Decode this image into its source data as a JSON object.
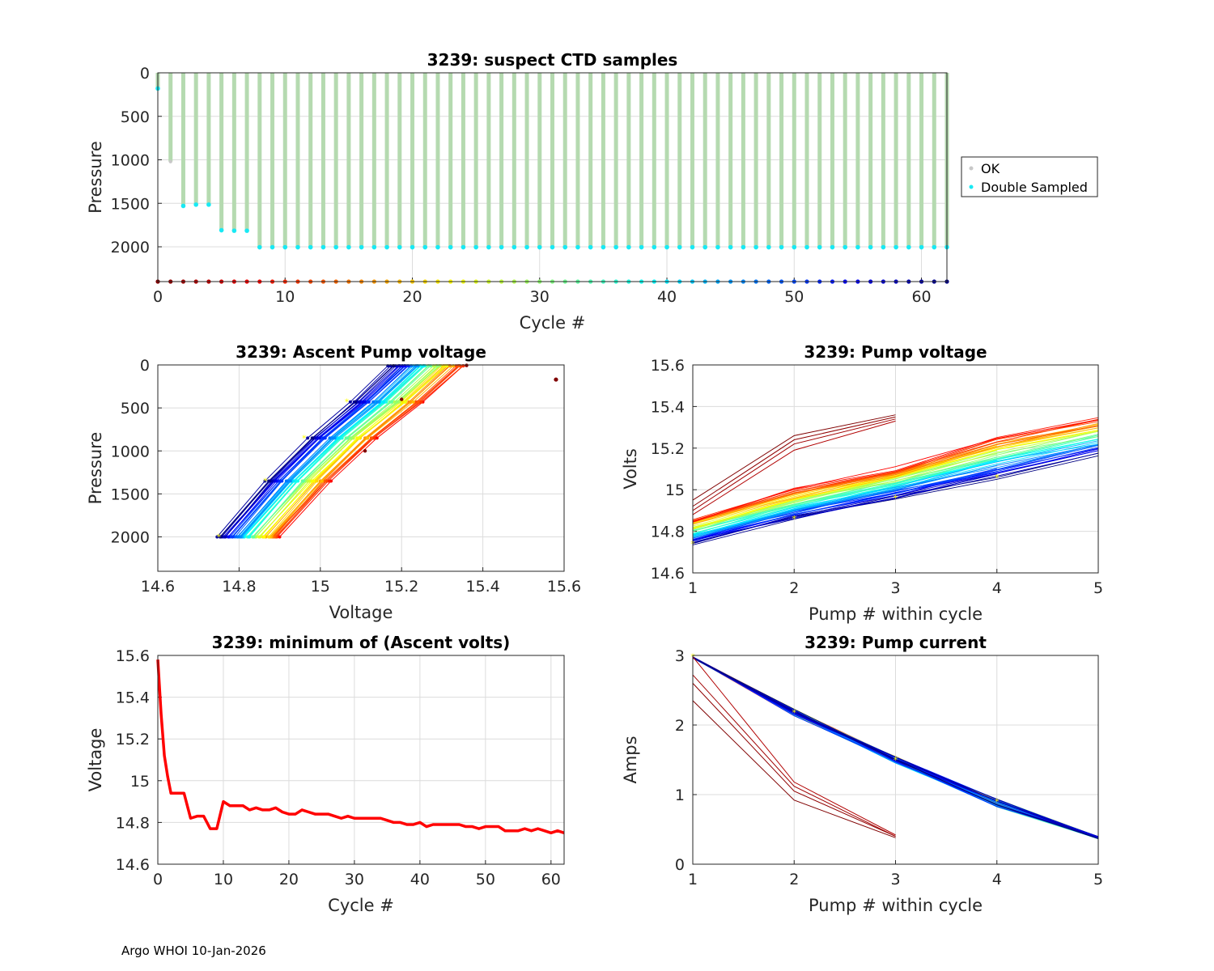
{
  "footer": "Argo WHOI 10-Jan-2026",
  "colors": {
    "grid": "#dcdcdc",
    "ok_bar": "#b5dab0",
    "double_sampled": "#19e9f4",
    "min_line": "#ff0000",
    "marker_yellow": "#ffff00"
  },
  "chart_data": [
    {
      "id": "ctd",
      "type": "bar",
      "title": "3239: suspect CTD samples",
      "xlabel": "Cycle #",
      "ylabel": "Pressure",
      "xlim": [
        0,
        62
      ],
      "ylim": [
        2400,
        0
      ],
      "xticks": [
        "0",
        "10",
        "20",
        "30",
        "40",
        "50",
        "60"
      ],
      "yticks": [
        "0",
        "500",
        "1000",
        "1500",
        "2000"
      ],
      "legend": [
        "OK",
        "Double Sampled"
      ],
      "legend_position": "outside-right",
      "cycles": [
        0,
        1,
        2,
        3,
        4,
        5,
        6,
        7,
        8,
        9,
        10,
        11,
        12,
        13,
        14,
        15,
        16,
        17,
        18,
        19,
        20,
        21,
        22,
        23,
        24,
        25,
        26,
        27,
        28,
        29,
        30,
        31,
        32,
        33,
        34,
        35,
        36,
        37,
        38,
        39,
        40,
        41,
        42,
        43,
        44,
        45,
        46,
        47,
        48,
        49,
        50,
        51,
        52,
        53,
        54,
        55,
        56,
        57,
        58,
        59,
        60,
        61,
        62
      ],
      "max_pressure": [
        180,
        1020,
        1530,
        1515,
        1515,
        1810,
        1815,
        1815,
        2005,
        2005,
        2005,
        2005,
        2005,
        2005,
        2005,
        2005,
        2005,
        2005,
        2005,
        2005,
        2005,
        2005,
        2005,
        2005,
        2005,
        2005,
        2005,
        2005,
        2005,
        2005,
        2005,
        2005,
        2005,
        2005,
        2005,
        2005,
        2005,
        2005,
        2005,
        2005,
        2005,
        2005,
        2005,
        2005,
        2005,
        2005,
        2005,
        2005,
        2005,
        2005,
        2005,
        2005,
        2005,
        2005,
        2005,
        2005,
        2005,
        2005,
        2005,
        2005,
        2005,
        2005,
        2005
      ],
      "double_sampled_at_bottom": [
        true,
        false,
        true,
        true,
        true,
        true,
        true,
        true,
        true,
        true,
        true,
        true,
        true,
        true,
        true,
        true,
        true,
        true,
        true,
        true,
        true,
        true,
        true,
        true,
        true,
        true,
        true,
        true,
        true,
        true,
        true,
        true,
        true,
        true,
        true,
        true,
        true,
        true,
        true,
        true,
        true,
        true,
        true,
        true,
        true,
        true,
        true,
        true,
        true,
        true,
        true,
        true,
        true,
        true,
        true,
        true,
        true,
        true,
        true,
        true,
        true,
        true,
        true
      ],
      "cycle_color_baseline_pressure": 2400
    },
    {
      "id": "ascent",
      "type": "line",
      "title": "3239: Ascent Pump voltage",
      "xlabel": "Voltage",
      "ylabel": "Pressure",
      "xlim": [
        14.6,
        15.6
      ],
      "ylim": [
        2400,
        0
      ],
      "xticks": [
        "14.6",
        "14.8",
        "15",
        "15.2",
        "15.4",
        "15.6"
      ],
      "yticks": [
        "0",
        "500",
        "1000",
        "1500",
        "2000"
      ],
      "pressures": [
        2000,
        1350,
        850,
        430,
        10
      ],
      "first_profile_points": [
        [
          15.58,
          170
        ]
      ],
      "early_profile_points": [
        [
          15.11,
          1000
        ],
        [
          15.2,
          400
        ],
        [
          15.36,
          5
        ]
      ],
      "voltage_at_2000_range": [
        14.75,
        14.9
      ],
      "voltage_at_surface_range": [
        15.17,
        15.35
      ]
    },
    {
      "id": "pumpv",
      "type": "line",
      "title": "3239: Pump voltage",
      "xlabel": "Pump # within cycle",
      "ylabel": "Volts",
      "xlim": [
        1,
        5
      ],
      "ylim": [
        14.6,
        15.6
      ],
      "xticks": [
        "1",
        "2",
        "3",
        "4",
        "5"
      ],
      "yticks": [
        "14.6",
        "14.8",
        "15",
        "15.2",
        "15.4",
        "15.6"
      ],
      "early_short_cycles": [
        [
          14.95,
          15.26,
          15.36
        ],
        [
          14.92,
          15.24,
          15.35
        ],
        [
          14.9,
          15.22,
          15.34
        ],
        [
          14.88,
          15.19,
          15.33
        ]
      ],
      "recent_cycle": [
        14.74,
        14.86,
        14.96,
        15.06,
        15.17
      ],
      "mid_cycle": [
        14.82,
        14.93,
        15.03,
        15.13,
        15.23
      ],
      "oldest_full_cycle": [
        14.86,
        15.0,
        15.1,
        15.25,
        15.34
      ]
    },
    {
      "id": "minv",
      "type": "line",
      "title": "3239: minimum of (Ascent volts)",
      "xlabel": "Cycle #",
      "ylabel": "Voltage",
      "xlim": [
        0,
        62
      ],
      "ylim": [
        14.6,
        15.6
      ],
      "xticks": [
        "0",
        "10",
        "20",
        "30",
        "40",
        "50",
        "60"
      ],
      "yticks": [
        "14.6",
        "14.8",
        "15",
        "15.2",
        "15.4",
        "15.6"
      ],
      "x": [
        0,
        0.5,
        1,
        1.5,
        2,
        3,
        4,
        5,
        6,
        7,
        8,
        9,
        10,
        11,
        12,
        13,
        14,
        15,
        16,
        17,
        18,
        19,
        20,
        21,
        22,
        23,
        24,
        25,
        26,
        27,
        28,
        29,
        30,
        31,
        32,
        33,
        34,
        35,
        36,
        37,
        38,
        39,
        40,
        41,
        42,
        43,
        44,
        45,
        46,
        47,
        48,
        49,
        50,
        51,
        52,
        53,
        54,
        55,
        56,
        57,
        58,
        59,
        60,
        61,
        62
      ],
      "values": [
        15.58,
        15.32,
        15.12,
        15.02,
        14.94,
        14.94,
        14.94,
        14.82,
        14.83,
        14.83,
        14.77,
        14.77,
        14.9,
        14.88,
        14.88,
        14.88,
        14.86,
        14.87,
        14.86,
        14.86,
        14.87,
        14.85,
        14.84,
        14.84,
        14.86,
        14.85,
        14.84,
        14.84,
        14.84,
        14.83,
        14.82,
        14.83,
        14.82,
        14.82,
        14.82,
        14.82,
        14.82,
        14.81,
        14.8,
        14.8,
        14.79,
        14.79,
        14.8,
        14.78,
        14.79,
        14.79,
        14.79,
        14.79,
        14.79,
        14.78,
        14.78,
        14.77,
        14.78,
        14.78,
        14.78,
        14.76,
        14.76,
        14.76,
        14.77,
        14.76,
        14.77,
        14.76,
        14.75,
        14.76,
        14.75
      ]
    },
    {
      "id": "pumpc",
      "type": "line",
      "title": "3239: Pump current",
      "xlabel": "Pump # within cycle",
      "ylabel": "Amps",
      "xlim": [
        1,
        5
      ],
      "ylim": [
        0,
        3
      ],
      "xticks": [
        "1",
        "2",
        "3",
        "4",
        "5"
      ],
      "yticks": [
        "0",
        "1",
        "2",
        "3"
      ],
      "early_short_cycles": [
        [
          2.35,
          0.92,
          0.38
        ],
        [
          2.6,
          1.05,
          0.4
        ],
        [
          2.72,
          1.12,
          0.4
        ],
        [
          2.98,
          1.18,
          0.42
        ]
      ],
      "full_cycle_start": 2.98,
      "full_cycle_end": 0.38,
      "full_cycle_mid": [
        2.18,
        1.5,
        0.88
      ]
    }
  ]
}
